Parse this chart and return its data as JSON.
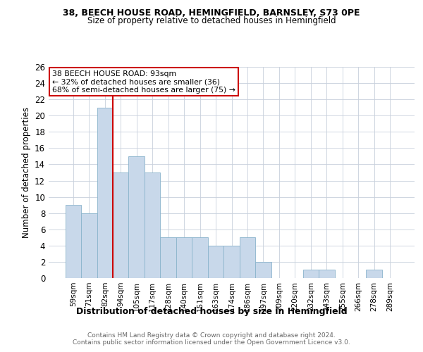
{
  "title1": "38, BEECH HOUSE ROAD, HEMINGFIELD, BARNSLEY, S73 0PE",
  "title2": "Size of property relative to detached houses in Hemingfield",
  "xlabel": "Distribution of detached houses by size in Hemingfield",
  "ylabel": "Number of detached properties",
  "categories": [
    "59sqm",
    "71sqm",
    "82sqm",
    "94sqm",
    "105sqm",
    "117sqm",
    "128sqm",
    "140sqm",
    "151sqm",
    "163sqm",
    "174sqm",
    "186sqm",
    "197sqm",
    "209sqm",
    "220sqm",
    "232sqm",
    "243sqm",
    "255sqm",
    "266sqm",
    "278sqm",
    "289sqm"
  ],
  "values": [
    9,
    8,
    21,
    13,
    15,
    13,
    5,
    5,
    5,
    4,
    4,
    5,
    2,
    0,
    0,
    1,
    1,
    0,
    0,
    1,
    0
  ],
  "bar_color": "#c8d8ea",
  "bar_edge_color": "#8ab4cc",
  "red_line_x": 2.5,
  "annotation_title": "38 BEECH HOUSE ROAD: 93sqm",
  "annotation_line1": "← 32% of detached houses are smaller (36)",
  "annotation_line2": "68% of semi-detached houses are larger (75) →",
  "annotation_box_color": "#ffffff",
  "annotation_box_edge": "#cc0000",
  "red_line_color": "#cc0000",
  "ylim": [
    0,
    26
  ],
  "yticks": [
    0,
    2,
    4,
    6,
    8,
    10,
    12,
    14,
    16,
    18,
    20,
    22,
    24,
    26
  ],
  "footer1": "Contains HM Land Registry data © Crown copyright and database right 2024.",
  "footer2": "Contains public sector information licensed under the Open Government Licence v3.0.",
  "background_color": "#ffffff",
  "grid_color": "#c8d0dc"
}
